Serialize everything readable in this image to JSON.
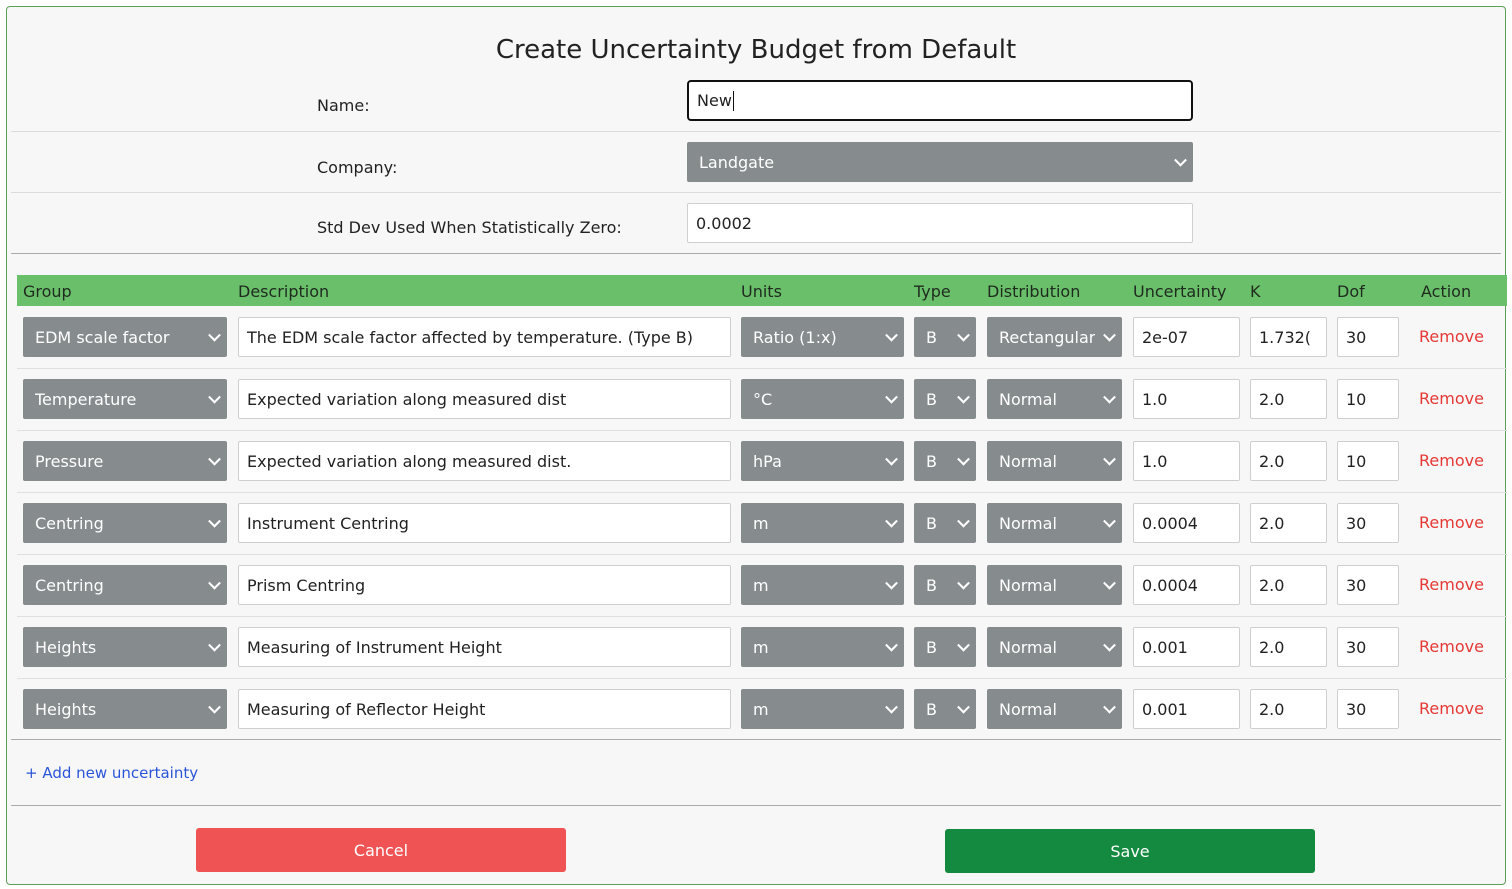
{
  "dialog": {
    "title": "Create Uncertainty Budget from Default"
  },
  "form": {
    "name_label": "Name:",
    "name_value": "New",
    "company_label": "Company:",
    "company_value": "Landgate",
    "stddev_label": "Std Dev Used When Statistically Zero:",
    "stddev_value": "0.0002"
  },
  "table": {
    "headers": {
      "group": "Group",
      "description": "Description",
      "units": "Units",
      "type": "Type",
      "distribution": "Distribution",
      "uncertainty": "Uncertainty",
      "k": "K",
      "dof": "Dof",
      "action": "Action"
    },
    "remove_label": "Remove",
    "rows": [
      {
        "group": "EDM scale factor",
        "description": "The EDM scale factor affected by temperature. (Type B)",
        "units": "Ratio (1:x)",
        "type": "B",
        "distribution": "Rectangular",
        "uncertainty": "2e-07",
        "k": "1.732(",
        "dof": "30"
      },
      {
        "group": "Temperature",
        "description": "Expected variation along measured dist",
        "units": "°C",
        "type": "B",
        "distribution": "Normal",
        "uncertainty": "1.0",
        "k": "2.0",
        "dof": "10"
      },
      {
        "group": "Pressure",
        "description": "Expected variation along measured dist.",
        "units": "hPa",
        "type": "B",
        "distribution": "Normal",
        "uncertainty": "1.0",
        "k": "2.0",
        "dof": "10"
      },
      {
        "group": "Centring",
        "description": "Instrument Centring",
        "units": "m",
        "type": "B",
        "distribution": "Normal",
        "uncertainty": "0.0004",
        "k": "2.0",
        "dof": "30"
      },
      {
        "group": "Centring",
        "description": "Prism Centring",
        "units": "m",
        "type": "B",
        "distribution": "Normal",
        "uncertainty": "0.0004",
        "k": "2.0",
        "dof": "30"
      },
      {
        "group": "Heights",
        "description": "Measuring of Instrument Height",
        "units": "m",
        "type": "B",
        "distribution": "Normal",
        "uncertainty": "0.001",
        "k": "2.0",
        "dof": "30"
      },
      {
        "group": "Heights",
        "description": "Measuring of Reflector Height",
        "units": "m",
        "type": "B",
        "distribution": "Normal",
        "uncertainty": "0.001",
        "k": "2.0",
        "dof": "30"
      }
    ]
  },
  "add_link": "+ Add new uncertainty",
  "buttons": {
    "cancel": "Cancel",
    "save": "Save"
  },
  "colors": {
    "header_green": "#6abf6a",
    "select_gray": "#868b8e",
    "remove_red": "#e53935",
    "cancel_red": "#f05353",
    "save_green": "#138a3f",
    "link_blue": "#2a55d8"
  }
}
